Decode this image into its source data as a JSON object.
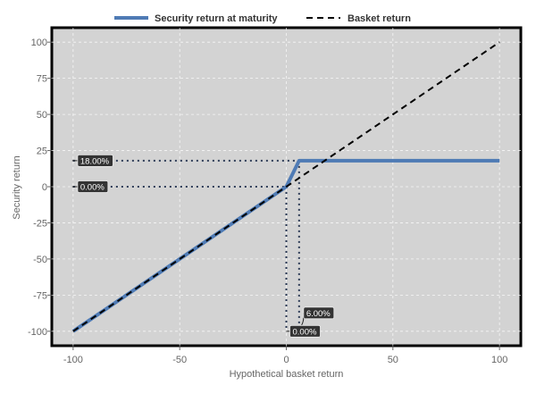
{
  "chart_data": {
    "type": "line",
    "xlabel": "Hypothetical basket return",
    "ylabel": "Security return",
    "xlim": [
      -110,
      110
    ],
    "ylim": [
      -110,
      110
    ],
    "x_ticks": [
      -100,
      -50,
      0,
      50,
      100
    ],
    "y_ticks": [
      100,
      75,
      50,
      25,
      0,
      -25,
      -50,
      -75,
      -100
    ],
    "x_tick_labels": [
      "-100",
      "-50",
      "0",
      "50",
      "100"
    ],
    "y_tick_labels": [
      "100",
      "75",
      "50",
      "25",
      "0",
      "-25",
      "-50",
      "-75",
      "-100"
    ],
    "grid": true,
    "legend_position": "top",
    "background_color": "#d3d3d3",
    "series": [
      {
        "name": "Security return at maturity",
        "style": "solid",
        "color": "#4f7bb5",
        "x": [
          -100,
          0,
          6,
          100
        ],
        "y": [
          -100,
          0,
          18,
          18
        ]
      },
      {
        "name": "Basket return",
        "style": "dashed",
        "color": "#000000",
        "x": [
          -100,
          100
        ],
        "y": [
          -100,
          100
        ]
      }
    ],
    "annotations": [
      {
        "label": "18.00%",
        "axis": "y",
        "value": 18,
        "x_end": 6
      },
      {
        "label": "0.00%",
        "axis": "y",
        "value": 0,
        "x_end": 0
      },
      {
        "label": "6.00%",
        "axis": "x",
        "value": 6,
        "y_end": 18
      },
      {
        "label": "0.00%",
        "axis": "x",
        "value": 0,
        "y_end": 0
      }
    ]
  }
}
